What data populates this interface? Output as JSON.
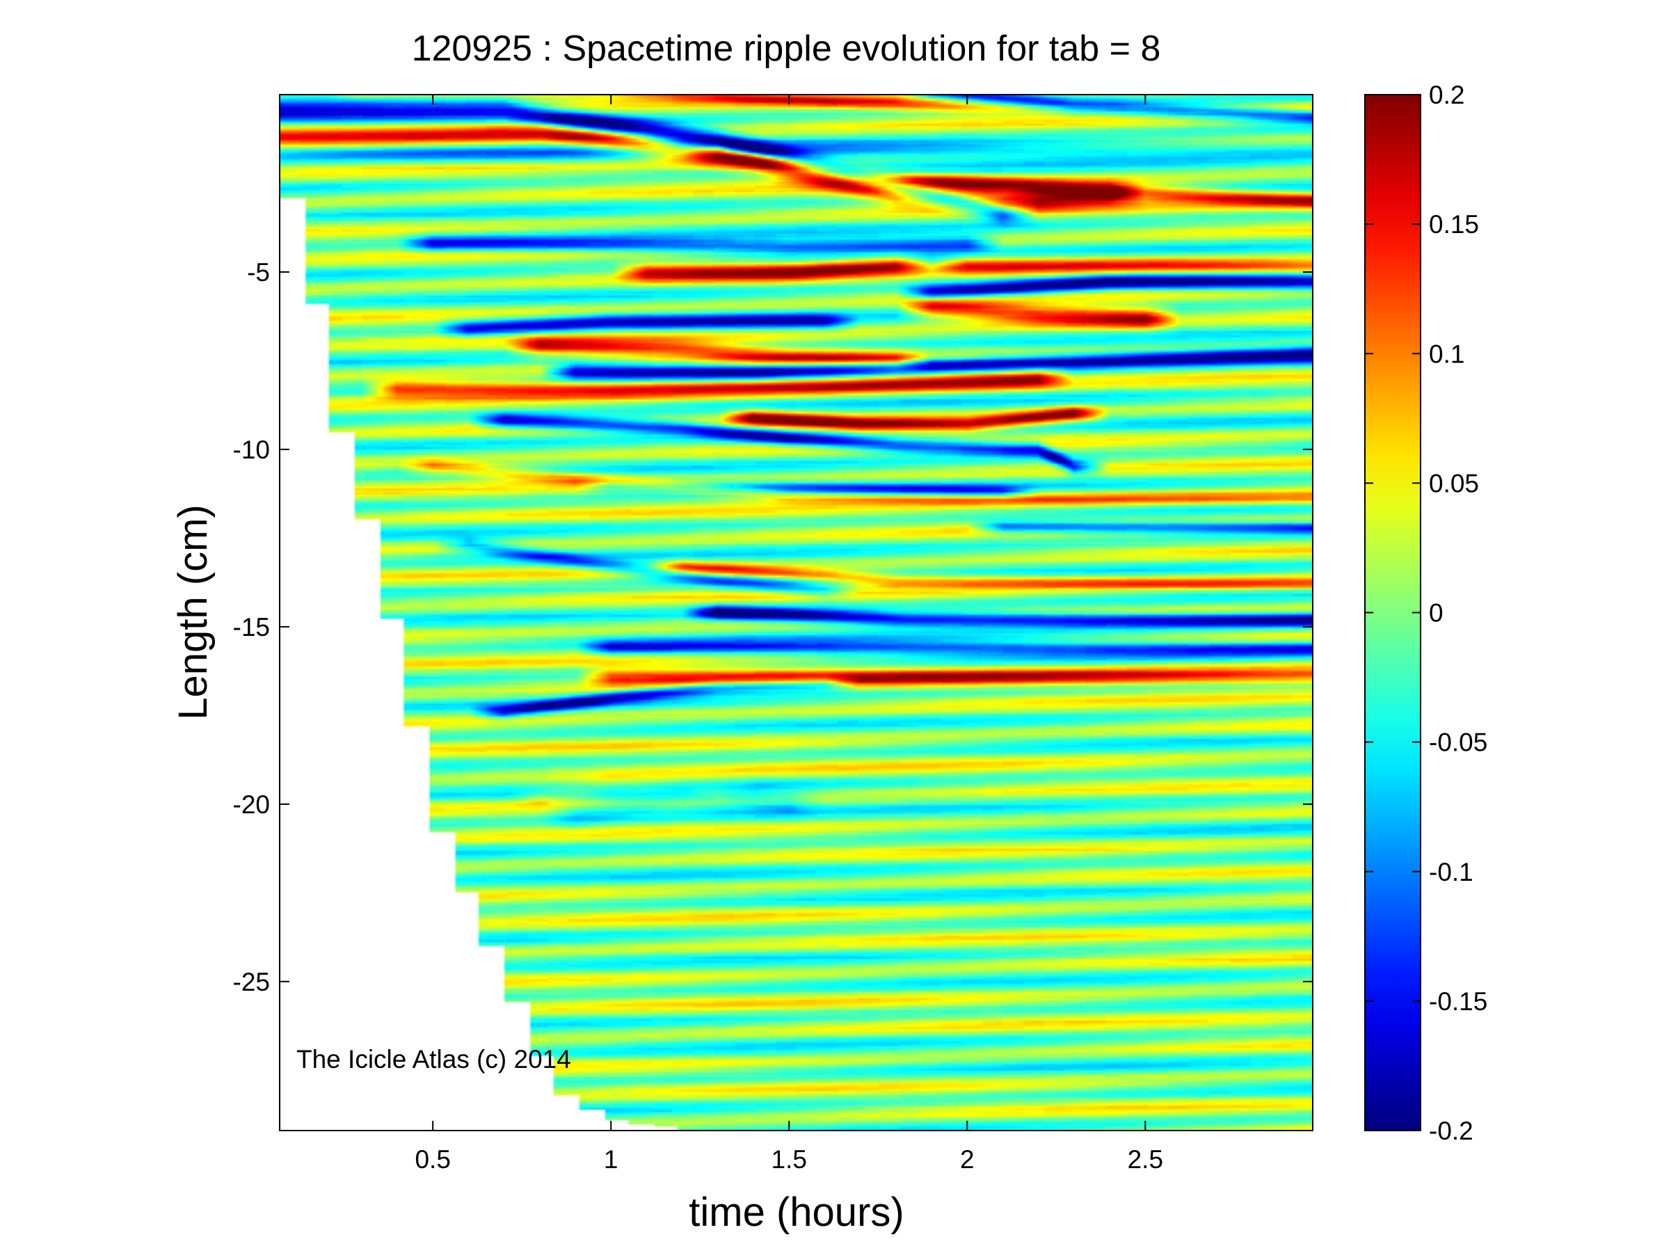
{
  "chart_data": {
    "type": "heatmap",
    "title": "120925 : Spacetime ripple evolution for tab = 8",
    "xlabel": "time (hours)",
    "ylabel": "Length (cm)",
    "xlim": [
      0.07,
      2.97
    ],
    "ylim": [
      -29.2,
      0.0
    ],
    "x_ticks": [
      0.5,
      1,
      1.5,
      2,
      2.5
    ],
    "x_tick_labels": [
      "0.5",
      "1",
      "1.5",
      "2",
      "2.5"
    ],
    "y_ticks": [
      -5,
      -10,
      -15,
      -20,
      -25
    ],
    "y_tick_labels": [
      "-5",
      "-10",
      "-15",
      "-20",
      "-25"
    ],
    "colorbar": {
      "colormap": "jet",
      "min": -0.2,
      "max": 0.2,
      "ticks": [
        0.2,
        0.15,
        0.1,
        0.05,
        0,
        -0.05,
        -0.1,
        -0.15,
        -0.2
      ],
      "tick_labels": [
        "0.2",
        "0.15",
        "0.1",
        "0.05",
        "0",
        "-0.05",
        "-0.1",
        "-0.15",
        "-0.2"
      ]
    },
    "growth_front": {
      "t": [
        0.07,
        0.14,
        0.21,
        0.28,
        0.35,
        0.42,
        0.49,
        0.56,
        0.63,
        0.7,
        0.77,
        0.84,
        0.91,
        0.98,
        1.05,
        1.12,
        1.19,
        1.26,
        1.4,
        1.55
      ],
      "tip_length": [
        -2.9,
        -5.9,
        -9.5,
        -12.0,
        -14.8,
        -17.8,
        -20.8,
        -22.5,
        -24.0,
        -25.6,
        -27.1,
        -28.2,
        -28.6,
        -28.9,
        -29.0,
        -29.1,
        -29.2,
        -29.2,
        -29.2,
        -29.2
      ]
    },
    "ripple_features": [
      {
        "sign": -1,
        "amp": 0.2,
        "y": [
          [
            0.07,
            -0.55
          ],
          [
            0.7,
            -0.45
          ],
          [
            1.3,
            -1.3
          ],
          [
            1.8,
            -2.6
          ],
          [
            2.1,
            -3.3
          ]
        ],
        "width": 0.28
      },
      {
        "sign": 1,
        "amp": 0.18,
        "y": [
          [
            0.07,
            -1.1
          ],
          [
            0.8,
            -1.0
          ],
          [
            1.4,
            -1.9
          ],
          [
            1.8,
            -2.8
          ],
          [
            2.1,
            -3.0
          ],
          [
            2.4,
            -2.8
          ]
        ],
        "width": 0.3
      },
      {
        "sign": 1,
        "amp": 0.12,
        "y": [
          [
            0.3,
            0.1
          ],
          [
            1.0,
            0.1
          ],
          [
            1.5,
            -0.15
          ],
          [
            2.0,
            -0.35
          ],
          [
            2.97,
            -0.35
          ]
        ],
        "width": 0.18
      },
      {
        "sign": -1,
        "amp": 0.18,
        "y": [
          [
            1.9,
            0.1
          ],
          [
            2.3,
            -0.3
          ],
          [
            2.97,
            -0.6
          ]
        ],
        "width": 0.22
      },
      {
        "sign": -1,
        "amp": 0.08,
        "y": [
          [
            0.07,
            -1.6
          ],
          [
            0.8,
            -1.7
          ],
          [
            2.97,
            -1.5
          ]
        ],
        "width": 0.25
      },
      {
        "sign": 1,
        "amp": 0.15,
        "y": [
          [
            1.3,
            -1.6
          ],
          [
            1.8,
            -2.4
          ],
          [
            2.2,
            -2.6
          ],
          [
            2.97,
            -3.0
          ]
        ],
        "width": 0.22
      },
      {
        "sign": -1,
        "amp": 0.14,
        "y": [
          [
            0.5,
            -4.2
          ],
          [
            1.5,
            -4.3
          ],
          [
            2.0,
            -4.2
          ]
        ],
        "width": 0.22
      },
      {
        "sign": 1,
        "amp": 0.16,
        "y": [
          [
            1.1,
            -5.0
          ],
          [
            1.5,
            -5.0
          ],
          [
            1.8,
            -4.8
          ]
        ],
        "width": 0.25
      },
      {
        "sign": 1,
        "amp": 0.12,
        "y": [
          [
            2.0,
            -4.8
          ],
          [
            2.5,
            -4.8
          ],
          [
            2.97,
            -4.9
          ]
        ],
        "width": 0.25
      },
      {
        "sign": -1,
        "amp": 0.2,
        "y": [
          [
            1.9,
            -5.6
          ],
          [
            2.4,
            -5.3
          ],
          [
            2.97,
            -5.3
          ]
        ],
        "width": 0.22
      },
      {
        "sign": 1,
        "amp": 0.18,
        "y": [
          [
            1.9,
            -6.0
          ],
          [
            2.2,
            -6.2
          ],
          [
            2.5,
            -6.3
          ]
        ],
        "width": 0.3
      },
      {
        "sign": -1,
        "amp": 0.14,
        "y": [
          [
            0.6,
            -6.6
          ],
          [
            1.0,
            -6.4
          ],
          [
            1.6,
            -6.4
          ]
        ],
        "width": 0.22
      },
      {
        "sign": 1,
        "amp": 0.15,
        "y": [
          [
            0.8,
            -7.1
          ],
          [
            1.2,
            -7.2
          ],
          [
            1.5,
            -7.4
          ],
          [
            1.8,
            -7.5
          ]
        ],
        "width": 0.25
      },
      {
        "sign": -1,
        "amp": 0.2,
        "y": [
          [
            0.9,
            -7.8
          ],
          [
            1.4,
            -7.8
          ],
          [
            2.0,
            -7.6
          ],
          [
            2.97,
            -7.3
          ]
        ],
        "width": 0.22
      },
      {
        "sign": 1,
        "amp": 0.17,
        "y": [
          [
            0.4,
            -8.3
          ],
          [
            1.0,
            -8.3
          ],
          [
            1.6,
            -8.2
          ],
          [
            2.2,
            -8.0
          ]
        ],
        "width": 0.25
      },
      {
        "sign": -1,
        "amp": 0.18,
        "y": [
          [
            0.7,
            -9.2
          ],
          [
            1.2,
            -9.4
          ],
          [
            1.5,
            -9.7
          ],
          [
            1.8,
            -9.9
          ],
          [
            2.2,
            -10.0
          ],
          [
            2.3,
            -10.5
          ]
        ],
        "width": 0.2
      },
      {
        "sign": 1,
        "amp": 0.2,
        "y": [
          [
            1.4,
            -9.1
          ],
          [
            1.7,
            -9.3
          ],
          [
            2.0,
            -9.3
          ],
          [
            2.3,
            -9.0
          ]
        ],
        "width": 0.2
      },
      {
        "sign": 1,
        "amp": 0.1,
        "y": [
          [
            0.5,
            -10.5
          ],
          [
            1.5,
            -11.3
          ],
          [
            2.0,
            -11.4
          ],
          [
            2.97,
            -11.4
          ]
        ],
        "width": 0.2
      },
      {
        "sign": -1,
        "amp": 0.12,
        "y": [
          [
            1.0,
            -11.0
          ],
          [
            1.6,
            -11.1
          ],
          [
            2.1,
            -11.2
          ]
        ],
        "width": 0.18
      },
      {
        "sign": -1,
        "amp": 0.16,
        "y": [
          [
            2.1,
            -12.2
          ],
          [
            2.97,
            -12.2
          ]
        ],
        "width": 0.16
      },
      {
        "sign": -1,
        "amp": 0.1,
        "y": [
          [
            0.6,
            -12.7
          ],
          [
            1.0,
            -13.3
          ],
          [
            1.3,
            -13.7
          ],
          [
            1.6,
            -14.0
          ]
        ],
        "width": 0.2
      },
      {
        "sign": 1,
        "amp": 0.12,
        "y": [
          [
            1.2,
            -13.3
          ],
          [
            1.8,
            -13.7
          ],
          [
            2.97,
            -13.8
          ]
        ],
        "width": 0.18
      },
      {
        "sign": -1,
        "amp": 0.2,
        "y": [
          [
            1.3,
            -14.6
          ],
          [
            1.8,
            -14.8
          ],
          [
            2.97,
            -14.8
          ]
        ],
        "width": 0.2
      },
      {
        "sign": -1,
        "amp": 0.14,
        "y": [
          [
            1.0,
            -15.6
          ],
          [
            1.8,
            -15.6
          ],
          [
            2.97,
            -15.6
          ]
        ],
        "width": 0.2
      },
      {
        "sign": 1,
        "amp": 0.14,
        "y": [
          [
            1.0,
            -16.4
          ],
          [
            1.5,
            -16.4
          ],
          [
            2.97,
            -16.4
          ]
        ],
        "width": 0.25
      },
      {
        "sign": -1,
        "amp": 0.15,
        "y": [
          [
            0.7,
            -17.4
          ],
          [
            1.0,
            -17.0
          ],
          [
            1.3,
            -16.7
          ],
          [
            1.6,
            -16.6
          ]
        ],
        "width": 0.18
      },
      {
        "sign": -1,
        "amp": 0.05,
        "y": [
          [
            0.9,
            -20.3
          ],
          [
            1.2,
            -19.8
          ],
          [
            1.5,
            -20.0
          ]
        ],
        "width": 0.35
      },
      {
        "sign": 1,
        "amp": 0.04,
        "y": [
          [
            0.8,
            -19.8
          ],
          [
            1.0,
            -19.4
          ],
          [
            1.3,
            -19.6
          ]
        ],
        "width": 0.3
      }
    ],
    "band_spacing_cm": 0.82,
    "band_amplitude": 0.045
  },
  "annotation": "The Icicle Atlas (c) 2014"
}
